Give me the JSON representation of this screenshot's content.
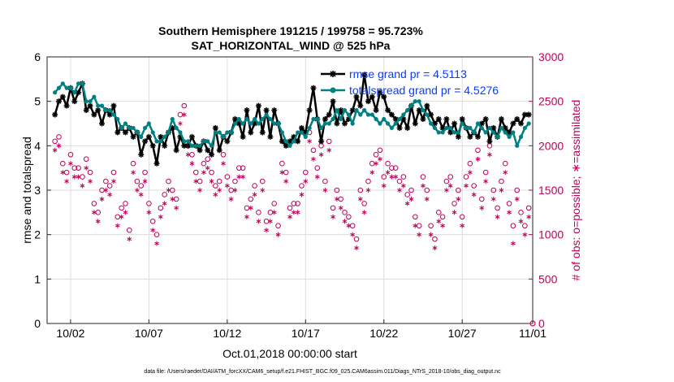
{
  "chart_data": {
    "type": "line",
    "title": "Southern Hemisphere 191215 / 199758 = 95.723%",
    "subtitle": "SAT_HORIZONTAL_WIND @ 525 hPa",
    "xlabel": "Oct.01,2018 00:00:00 start",
    "ylabel": "rmse and totalspread",
    "y2label": "# of obs: o=possible; ∗=assimilated",
    "footer": "data file: /Users/raeder/DAI/ATM_forcXX/CAM6_setup/f.e21.FHIST_BGC.f09_025.CAM6assim.011/Diags_NTrS_2018-10/obs_diag_output.nc",
    "xlim": [
      0.5,
      31.5
    ],
    "ylim": [
      0,
      6
    ],
    "y2lim": [
      0,
      3000
    ],
    "xtick_positions": [
      2,
      7,
      12,
      17,
      22,
      27,
      32
    ],
    "xtick_labels": [
      "10/02",
      "10/07",
      "10/12",
      "10/17",
      "10/22",
      "10/27",
      "11/01"
    ],
    "yticks": [
      0,
      1,
      2,
      3,
      4,
      5,
      6
    ],
    "y2ticks": [
      0,
      500,
      1000,
      1500,
      2000,
      2500,
      3000
    ],
    "grid": true,
    "legend_position": "top-right",
    "colors": {
      "rmse": "#000000",
      "spread": "#008080",
      "obs": "#c0005a",
      "legend_text": "#0a3cff"
    },
    "series": [
      {
        "name": "rmse grand pr = 4.5113",
        "x": [
          1.0,
          1.25,
          1.5,
          1.75,
          2.0,
          2.25,
          2.5,
          2.75,
          3.0,
          3.25,
          3.5,
          3.75,
          4.0,
          4.25,
          4.5,
          4.75,
          5.0,
          5.25,
          5.5,
          5.75,
          6.0,
          6.25,
          6.5,
          6.75,
          7.0,
          7.25,
          7.5,
          7.75,
          8.0,
          8.25,
          8.5,
          8.75,
          9.0,
          9.25,
          9.5,
          9.75,
          10.0,
          10.25,
          10.5,
          10.75,
          11.0,
          11.25,
          11.5,
          11.75,
          12.0,
          12.25,
          12.5,
          12.75,
          13.0,
          13.25,
          13.5,
          13.75,
          14.0,
          14.25,
          14.5,
          14.75,
          15.0,
          15.25,
          15.5,
          15.75,
          16.0,
          16.25,
          16.5,
          16.75,
          17.0,
          17.25,
          17.5,
          17.75,
          18.0,
          18.25,
          18.5,
          18.75,
          19.0,
          19.25,
          19.5,
          19.75,
          20.0,
          20.25,
          20.5,
          20.75,
          21.0,
          21.25,
          21.5,
          21.75,
          22.0,
          22.25,
          22.5,
          22.75,
          23.0,
          23.25,
          23.5,
          23.75,
          24.0,
          24.25,
          24.5,
          24.75,
          25.0,
          25.25,
          25.5,
          25.75,
          26.0,
          26.25,
          26.5,
          26.75,
          27.0,
          27.25,
          27.5,
          27.75,
          28.0,
          28.25,
          28.5,
          28.75,
          29.0,
          29.25,
          29.5,
          29.75,
          30.0,
          30.25,
          30.5,
          30.75,
          31.0,
          31.25
        ],
        "values": [
          4.7,
          5.0,
          5.1,
          4.9,
          5.3,
          5.0,
          5.2,
          5.4,
          4.8,
          4.9,
          4.7,
          4.8,
          4.5,
          4.8,
          4.7,
          4.9,
          4.3,
          4.4,
          4.3,
          4.4,
          4.2,
          4.3,
          3.8,
          4.1,
          4.2,
          4.0,
          3.6,
          4.2,
          4.0,
          4.3,
          4.4,
          3.9,
          4.2,
          4.0,
          4.0,
          4.2,
          4.0,
          3.9,
          4.1,
          3.9,
          3.8,
          4.4,
          3.9,
          4.2,
          4.1,
          4.3,
          4.6,
          4.5,
          4.2,
          4.8,
          4.3,
          4.5,
          4.9,
          4.3,
          4.8,
          4.2,
          4.8,
          4.5,
          4.1,
          4.0,
          4.1,
          4.2,
          4.1,
          4.4,
          4.3,
          4.8,
          5.3,
          4.6,
          4.1,
          4.6,
          4.7,
          5.0,
          4.5,
          4.8,
          4.5,
          4.6,
          4.8,
          5.1,
          4.9,
          5.6,
          5.0,
          5.1,
          4.8,
          5.2,
          5.1,
          4.8,
          4.7,
          4.6,
          4.4,
          4.6,
          4.4,
          4.9,
          4.5,
          4.8,
          4.6,
          4.9,
          4.7,
          4.5,
          4.6,
          4.4,
          4.6,
          4.3,
          4.5,
          4.2,
          4.6,
          4.4,
          4.2,
          4.3,
          4.2,
          4.5,
          4.6,
          4.1,
          4.4,
          4.2,
          4.6,
          4.4,
          4.3,
          4.5,
          4.6,
          4.5,
          4.7,
          4.7
        ],
        "color": "#000000",
        "marker": "asterisk"
      },
      {
        "name": "totalspread grand pr = 4.5276",
        "x": [
          1.0,
          1.25,
          1.5,
          1.75,
          2.0,
          2.25,
          2.5,
          2.75,
          3.0,
          3.25,
          3.5,
          3.75,
          4.0,
          4.25,
          4.5,
          4.75,
          5.0,
          5.25,
          5.5,
          5.75,
          6.0,
          6.25,
          6.5,
          6.75,
          7.0,
          7.25,
          7.5,
          7.75,
          8.0,
          8.25,
          8.5,
          8.75,
          9.0,
          9.25,
          9.5,
          9.75,
          10.0,
          10.25,
          10.5,
          10.75,
          11.0,
          11.25,
          11.5,
          11.75,
          12.0,
          12.25,
          12.5,
          12.75,
          13.0,
          13.25,
          13.5,
          13.75,
          14.0,
          14.25,
          14.5,
          14.75,
          15.0,
          15.25,
          15.5,
          15.75,
          16.0,
          16.25,
          16.5,
          16.75,
          17.0,
          17.25,
          17.5,
          17.75,
          18.0,
          18.25,
          18.5,
          18.75,
          19.0,
          19.25,
          19.5,
          19.75,
          20.0,
          20.25,
          20.5,
          20.75,
          21.0,
          21.25,
          21.5,
          21.75,
          22.0,
          22.25,
          22.5,
          22.75,
          23.0,
          23.25,
          23.5,
          23.75,
          24.0,
          24.25,
          24.5,
          24.75,
          25.0,
          25.25,
          25.5,
          25.75,
          26.0,
          26.25,
          26.5,
          26.75,
          27.0,
          27.25,
          27.5,
          27.75,
          28.0,
          28.25,
          28.5,
          28.75,
          29.0,
          29.25,
          29.5,
          29.75,
          30.0,
          30.25,
          30.5,
          30.75,
          31.0,
          31.25
        ],
        "values": [
          5.2,
          5.3,
          5.4,
          5.3,
          5.3,
          5.2,
          5.4,
          5.4,
          5.0,
          5.0,
          5.1,
          4.9,
          4.9,
          4.8,
          4.8,
          4.7,
          4.6,
          4.4,
          4.5,
          4.4,
          4.4,
          4.3,
          4.2,
          4.4,
          4.5,
          4.3,
          4.1,
          4.1,
          4.2,
          4.3,
          4.6,
          4.4,
          4.3,
          4.1,
          4.1,
          4.0,
          4.0,
          4.0,
          4.1,
          4.1,
          4.0,
          4.3,
          4.3,
          4.2,
          4.3,
          4.3,
          4.5,
          4.6,
          4.5,
          4.6,
          4.5,
          4.6,
          4.5,
          4.6,
          4.7,
          4.6,
          4.5,
          4.5,
          4.3,
          4.1,
          4.0,
          4.1,
          4.3,
          4.3,
          4.2,
          4.4,
          4.6,
          4.6,
          4.4,
          4.5,
          4.5,
          4.6,
          4.8,
          4.6,
          4.8,
          4.7,
          4.5,
          4.8,
          4.7,
          4.8,
          4.7,
          4.7,
          4.6,
          4.5,
          4.6,
          4.5,
          4.4,
          4.5,
          4.6,
          4.7,
          4.8,
          4.9,
          5.0,
          5.0,
          4.8,
          4.7,
          4.5,
          4.4,
          4.3,
          4.3,
          4.4,
          4.4,
          4.3,
          4.3,
          4.5,
          4.4,
          4.4,
          4.3,
          4.5,
          4.4,
          4.3,
          4.4,
          4.3,
          4.2,
          4.4,
          4.3,
          4.2,
          4.3,
          4.0,
          4.2,
          4.4,
          4.5
        ],
        "color": "#008080",
        "marker": "circle-filled"
      },
      {
        "name": "obs possible",
        "axis": "right",
        "x": [
          1.0,
          1.25,
          1.5,
          1.75,
          2.0,
          2.25,
          2.5,
          2.75,
          3.0,
          3.25,
          3.5,
          3.75,
          4.0,
          4.25,
          4.5,
          4.75,
          5.0,
          5.25,
          5.5,
          5.75,
          6.0,
          6.25,
          6.5,
          6.75,
          7.0,
          7.25,
          7.5,
          7.75,
          8.0,
          8.25,
          8.5,
          8.75,
          9.0,
          9.25,
          9.5,
          9.75,
          10.0,
          10.25,
          10.5,
          10.75,
          11.0,
          11.25,
          11.5,
          11.75,
          12.0,
          12.25,
          12.5,
          12.75,
          13.0,
          13.25,
          13.5,
          13.75,
          14.0,
          14.25,
          14.5,
          14.75,
          15.0,
          15.25,
          15.5,
          15.75,
          16.0,
          16.25,
          16.5,
          16.75,
          17.0,
          17.25,
          17.5,
          17.75,
          18.0,
          18.25,
          18.5,
          18.75,
          19.0,
          19.25,
          19.5,
          19.75,
          20.0,
          20.25,
          20.5,
          20.75,
          21.0,
          21.25,
          21.5,
          21.75,
          22.0,
          22.25,
          22.5,
          22.75,
          23.0,
          23.25,
          23.5,
          23.75,
          24.0,
          24.25,
          24.5,
          24.75,
          25.0,
          25.25,
          25.5,
          25.75,
          26.0,
          26.25,
          26.5,
          26.75,
          27.0,
          27.25,
          27.5,
          27.75,
          28.0,
          28.25,
          28.5,
          28.75,
          29.0,
          29.25,
          29.5,
          29.75,
          30.0,
          30.25,
          30.5,
          30.75,
          31.0,
          31.25
        ],
        "values": [
          2050,
          2100,
          1800,
          1700,
          1900,
          1750,
          1750,
          1650,
          1850,
          1700,
          1350,
          1250,
          1500,
          1600,
          1550,
          1700,
          1200,
          1300,
          1350,
          1050,
          1800,
          1600,
          1550,
          1700,
          1350,
          1150,
          1000,
          1300,
          1450,
          1600,
          1500,
          1400,
          2350,
          2450,
          2000,
          1900,
          1700,
          1600,
          1800,
          1850,
          1700,
          1550,
          1600,
          1900,
          1650,
          1500,
          1600,
          1750,
          1750,
          1300,
          1400,
          1550,
          1250,
          1600,
          1150,
          1250,
          1350,
          1100,
          1800,
          1700,
          1300,
          1350,
          1350,
          1550,
          1700,
          2150,
          1950,
          1750,
          2000,
          1600,
          2050,
          1300,
          1500,
          1400,
          1250,
          1200,
          1100,
          950,
          1500,
          1350,
          1600,
          1800,
          1900,
          1950,
          1650,
          1800,
          1750,
          1750,
          1600,
          1650,
          1450,
          1500,
          1200,
          1100,
          1650,
          1500,
          1100,
          950,
          1250,
          1200,
          1600,
          1650,
          1350,
          1500,
          1200,
          1650,
          1800,
          1550,
          1950,
          1400,
          1700,
          2000,
          1500,
          1300,
          1600,
          1800,
          1350,
          1100,
          1500,
          1250,
          1100,
          1300
        ]
      },
      {
        "name": "obs assimilated",
        "axis": "right",
        "x": [
          1.0,
          1.25,
          1.5,
          1.75,
          2.0,
          2.25,
          2.5,
          2.75,
          3.0,
          3.25,
          3.5,
          3.75,
          4.0,
          4.25,
          4.5,
          4.75,
          5.0,
          5.25,
          5.5,
          5.75,
          6.0,
          6.25,
          6.5,
          6.75,
          7.0,
          7.25,
          7.5,
          7.75,
          8.0,
          8.25,
          8.5,
          8.75,
          9.0,
          9.25,
          9.5,
          9.75,
          10.0,
          10.25,
          10.5,
          10.75,
          11.0,
          11.25,
          11.5,
          11.75,
          12.0,
          12.25,
          12.5,
          12.75,
          13.0,
          13.25,
          13.5,
          13.75,
          14.0,
          14.25,
          14.5,
          14.75,
          15.0,
          15.25,
          15.5,
          15.75,
          16.0,
          16.25,
          16.5,
          16.75,
          17.0,
          17.25,
          17.5,
          17.75,
          18.0,
          18.25,
          18.5,
          18.75,
          19.0,
          19.25,
          19.5,
          19.75,
          20.0,
          20.25,
          20.5,
          20.75,
          21.0,
          21.25,
          21.5,
          21.75,
          22.0,
          22.25,
          22.5,
          22.75,
          23.0,
          23.25,
          23.5,
          23.75,
          24.0,
          24.25,
          24.5,
          24.75,
          25.0,
          25.25,
          25.5,
          25.75,
          26.0,
          26.25,
          26.5,
          26.75,
          27.0,
          27.25,
          27.5,
          27.75,
          28.0,
          28.25,
          28.5,
          28.75,
          29.0,
          29.25,
          29.5,
          29.75,
          30.0,
          30.25,
          30.5,
          30.75,
          31.0,
          31.25
        ],
        "values": [
          1950,
          2000,
          1700,
          1600,
          1800,
          1650,
          1650,
          1550,
          1750,
          1600,
          1250,
          1150,
          1400,
          1500,
          1450,
          1600,
          1100,
          1200,
          1250,
          950,
          1700,
          1500,
          1450,
          1600,
          1250,
          1050,
          900,
          1200,
          1350,
          1500,
          1400,
          1300,
          2250,
          2350,
          1900,
          1800,
          1600,
          1500,
          1700,
          1750,
          1600,
          1450,
          1500,
          1800,
          1550,
          1400,
          1500,
          1650,
          1650,
          1200,
          1300,
          1450,
          1150,
          1500,
          1050,
          1150,
          1250,
          1000,
          1700,
          1600,
          1200,
          1250,
          1250,
          1450,
          1600,
          2050,
          1850,
          1650,
          1900,
          1500,
          1950,
          1200,
          1400,
          1300,
          1150,
          1100,
          1000,
          850,
          1400,
          1250,
          1500,
          1700,
          1800,
          1850,
          1550,
          1700,
          1650,
          1650,
          1500,
          1550,
          1350,
          1400,
          1100,
          1000,
          1550,
          1400,
          1000,
          850,
          1150,
          1100,
          1500,
          1550,
          1250,
          1400,
          1100,
          1550,
          1700,
          1450,
          1850,
          1300,
          1600,
          1900,
          1400,
          1200,
          1500,
          1700,
          1250,
          900,
          1400,
          1150,
          1000,
          1200
        ]
      }
    ]
  }
}
